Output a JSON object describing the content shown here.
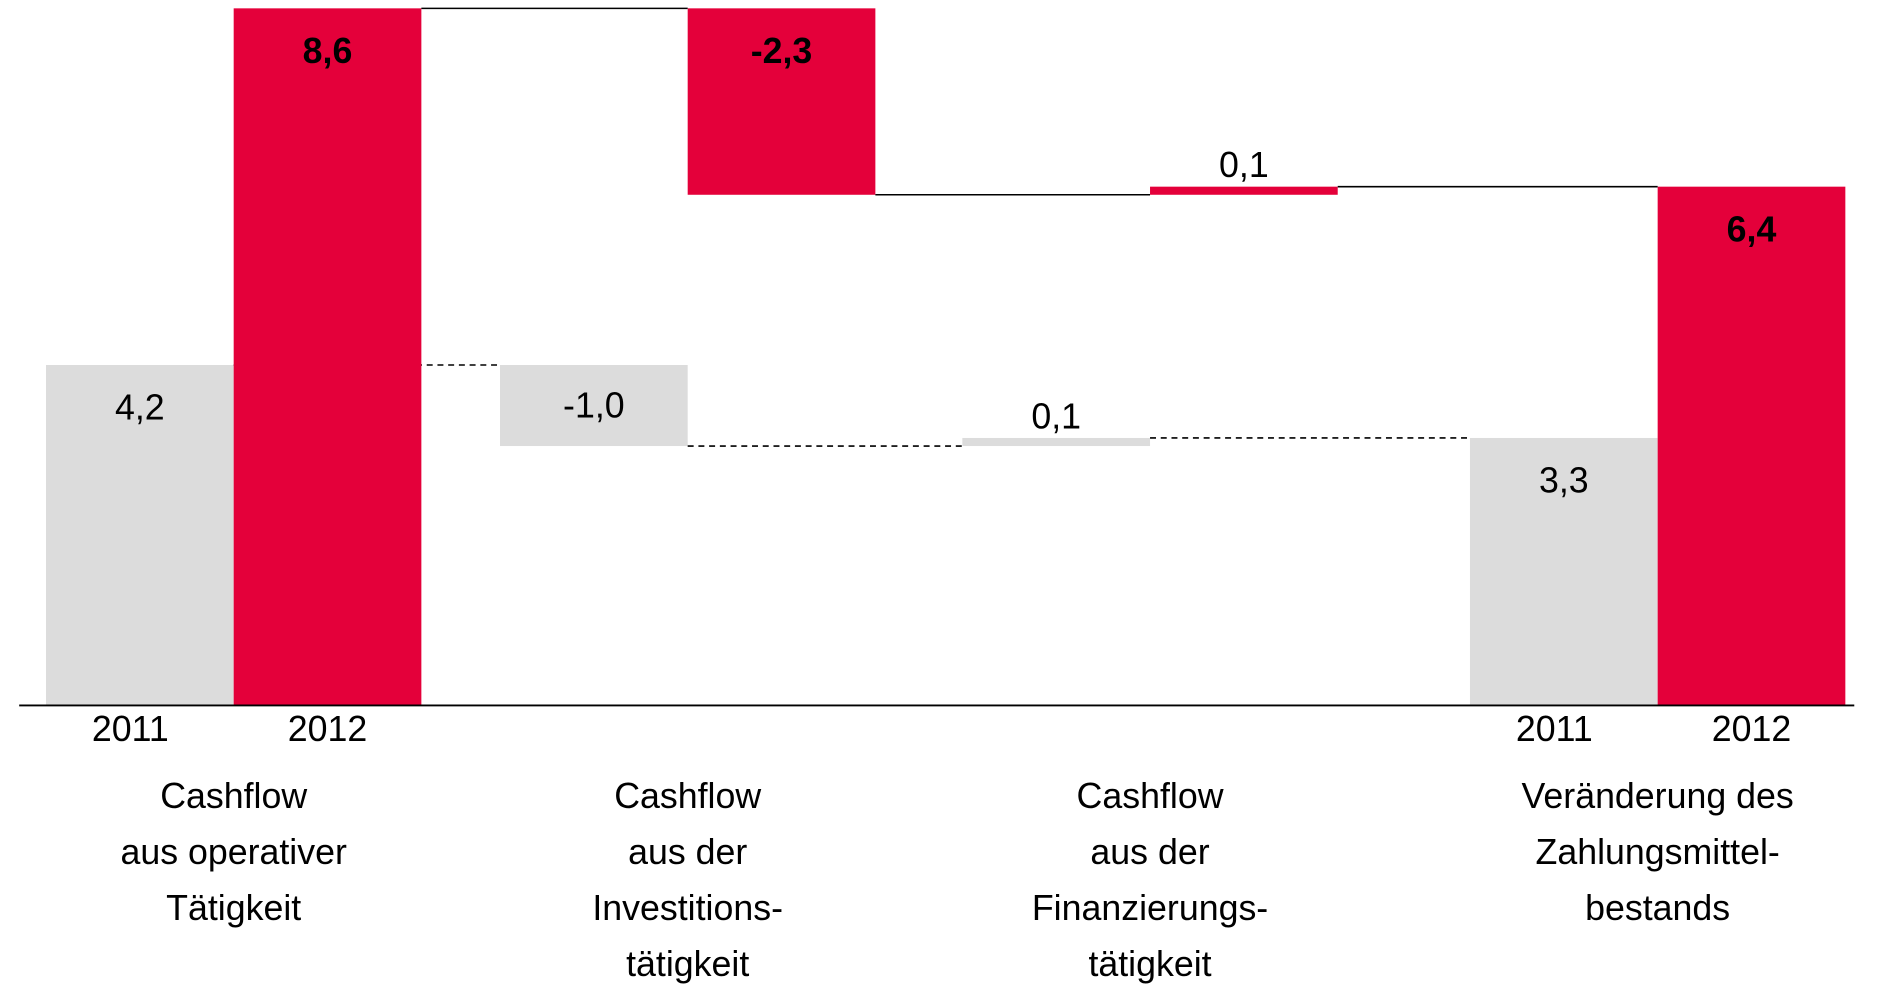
{
  "chart_data": {
    "type": "waterfall",
    "categories": [
      [
        "Cashflow",
        "aus operativer",
        "Tätigkeit"
      ],
      [
        "Cashflow",
        "aus der",
        "Investitions-",
        "tätigkeit"
      ],
      [
        "Cashflow",
        "aus der",
        "Finanzierungs-",
        "tätigkeit"
      ],
      [
        "Veränderung des",
        "Zahlungsmittel-",
        "bestands"
      ]
    ],
    "totals": [
      true,
      false,
      false,
      true
    ],
    "series": [
      {
        "name": "2011",
        "color": "#dcdcdc",
        "values": [
          4.2,
          -1.0,
          0.1,
          3.3
        ],
        "value_labels": [
          "4,2",
          "-1,0",
          "0,1",
          "3,3"
        ]
      },
      {
        "name": "2012",
        "color": "#e4003a",
        "values": [
          8.6,
          -2.3,
          0.1,
          6.4
        ],
        "value_labels": [
          "8,6",
          "-2,3",
          "0,1",
          "6,4"
        ]
      }
    ]
  }
}
